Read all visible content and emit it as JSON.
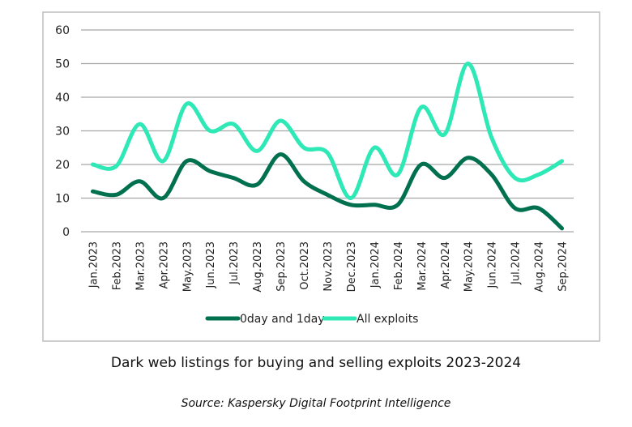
{
  "chart_data": {
    "type": "line",
    "title": "Dark web listings for buying and selling exploits  2023-2024",
    "source": "Source: Kaspersky Digital Footprint Intelligence",
    "xlabel": "",
    "ylabel": "",
    "ylim": [
      0,
      60
    ],
    "yticks": [
      0,
      10,
      20,
      30,
      40,
      50,
      60
    ],
    "grid": true,
    "legend": "bottom",
    "smooth": true,
    "categories": [
      "Jan.2023",
      "Feb.2023",
      "Mar.2023",
      "Apr.2023",
      "May.2023",
      "Jun.2023",
      "Jul.2023",
      "Aug.2023",
      "Sep.2023",
      "Oct.2023",
      "Nov.2023",
      "Dec.2023",
      "Jan.2024",
      "Feb.2024",
      "Mar.2024",
      "Apr.2024",
      "May.2024",
      "Jun.2024",
      "Jul.2024",
      "Aug.2024",
      "Sep.2024"
    ],
    "series": [
      {
        "name": "0day and 1day",
        "color": "#00704f",
        "values": [
          12,
          11,
          15,
          10,
          21,
          18,
          16,
          14,
          23,
          15,
          11,
          8,
          8,
          8,
          20,
          16,
          22,
          17,
          7,
          7,
          1
        ]
      },
      {
        "name": "All exploits",
        "color": "#2ee8b6",
        "values": [
          20,
          19.5,
          32,
          21,
          38,
          30,
          32,
          24,
          33,
          25,
          23.5,
          10,
          25,
          17,
          37,
          29,
          50,
          28,
          16,
          17,
          21
        ]
      }
    ]
  }
}
